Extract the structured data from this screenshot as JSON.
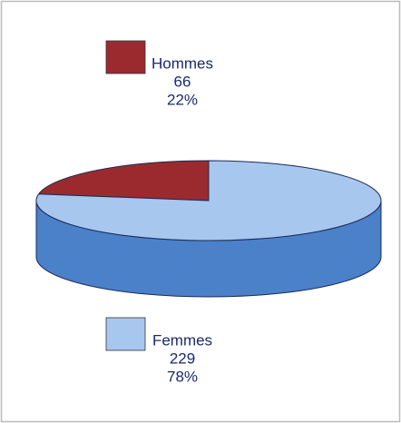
{
  "chart_data": {
    "type": "pie",
    "categories": [
      "Hommes",
      "Femmes"
    ],
    "values": [
      66,
      229
    ],
    "percent_labels": [
      "22%",
      "78%"
    ],
    "colors": [
      "#9b2a2f",
      "#a8c7ef"
    ]
  }
}
